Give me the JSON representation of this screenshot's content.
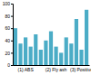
{
  "chart_data": {
    "type": "bar",
    "categories": [
      null,
      null,
      "(1) ABS",
      null,
      null,
      null,
      null,
      null,
      "(2) Fly ash",
      null,
      null,
      null,
      null,
      "(3) Positive",
      null
    ],
    "values": [
      60,
      35,
      45,
      30,
      50,
      25,
      40,
      55,
      30,
      20,
      45,
      35,
      75,
      25,
      90
    ],
    "color": "#4bacc6",
    "ylim": [
      0,
      100
    ],
    "yticks": [
      0,
      20,
      40,
      60,
      80,
      100
    ],
    "grid": false
  }
}
